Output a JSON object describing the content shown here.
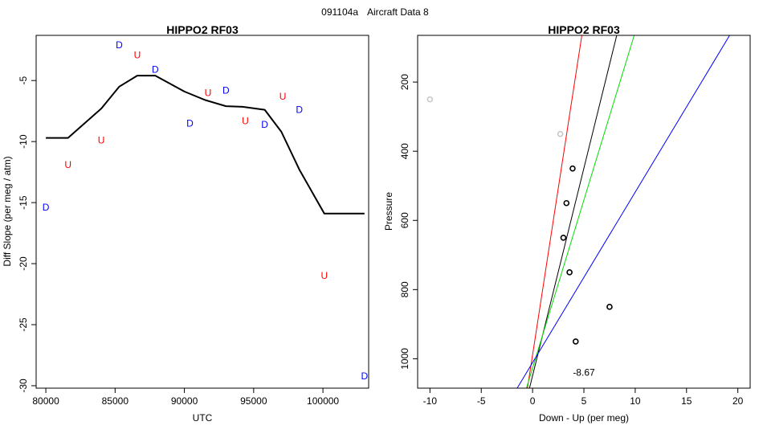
{
  "figure": {
    "supertitle_left": "091104a",
    "supertitle_right": "Aircraft Data 8"
  },
  "chart_data": [
    {
      "type": "line",
      "title": "HIPPO2 RF03",
      "xlabel": "UTC",
      "ylabel": "Diff Slope (per meg / atm)",
      "xlim": [
        79300,
        103300
      ],
      "ylim": [
        -30.2,
        -1.3
      ],
      "xticks": [
        80000,
        85000,
        90000,
        95000,
        100000
      ],
      "yticks": [
        -30,
        -25,
        -20,
        -15,
        -10,
        -5
      ],
      "series": [
        {
          "name": "smoothed",
          "color": "#000000",
          "x": [
            80000,
            81600,
            84000,
            85300,
            86600,
            87900,
            90000,
            91500,
            93000,
            94200,
            95800,
            97000,
            98300,
            100100,
            102000,
            103000
          ],
          "y": [
            -9.7,
            -9.7,
            -7.3,
            -5.5,
            -4.6,
            -4.6,
            -5.9,
            -6.6,
            -7.1,
            -7.15,
            -7.4,
            -9.2,
            -12.3,
            -15.9,
            -15.9,
            -15.9
          ]
        }
      ],
      "markers": [
        {
          "label": "D",
          "x": 80000,
          "y": -15.4,
          "color": "#0000ff"
        },
        {
          "label": "U",
          "x": 81600,
          "y": -11.9,
          "color": "#ff0000"
        },
        {
          "label": "U",
          "x": 84000,
          "y": -9.9,
          "color": "#ff0000"
        },
        {
          "label": "D",
          "x": 85300,
          "y": -2.1,
          "color": "#0000ff"
        },
        {
          "label": "U",
          "x": 86600,
          "y": -2.9,
          "color": "#ff0000"
        },
        {
          "label": "D",
          "x": 87900,
          "y": -4.1,
          "color": "#0000ff"
        },
        {
          "label": "D",
          "x": 90400,
          "y": -8.5,
          "color": "#0000ff"
        },
        {
          "label": "U",
          "x": 91700,
          "y": -6.0,
          "color": "#ff0000"
        },
        {
          "label": "D",
          "x": 93000,
          "y": -5.8,
          "color": "#0000ff"
        },
        {
          "label": "U",
          "x": 94400,
          "y": -8.3,
          "color": "#ff0000"
        },
        {
          "label": "D",
          "x": 95800,
          "y": -8.6,
          "color": "#0000ff"
        },
        {
          "label": "U",
          "x": 97100,
          "y": -6.3,
          "color": "#ff0000"
        },
        {
          "label": "D",
          "x": 98300,
          "y": -7.4,
          "color": "#0000ff"
        },
        {
          "label": "U",
          "x": 100100,
          "y": -21.0,
          "color": "#ff0000"
        },
        {
          "label": "D",
          "x": 103000,
          "y": -29.2,
          "color": "#0000ff"
        }
      ]
    },
    {
      "type": "scatter",
      "title": "HIPPO2 RF03",
      "xlabel": "Down - Up (per meg)",
      "ylabel": "Pressure",
      "xlim": [
        -11.2,
        21.2
      ],
      "ylim": [
        1085,
        65
      ],
      "y_reversed": true,
      "xticks": [
        -10,
        -5,
        0,
        5,
        10,
        15,
        20
      ],
      "yticks": [
        200,
        400,
        600,
        800,
        1000
      ],
      "points": [
        {
          "x": -10.0,
          "y": 250,
          "color": "#c8c8c8"
        },
        {
          "x": 2.7,
          "y": 350,
          "color": "#c8c8c8"
        },
        {
          "x": 3.9,
          "y": 450,
          "color": "#000000"
        },
        {
          "x": 3.3,
          "y": 550,
          "color": "#000000"
        },
        {
          "x": 3.0,
          "y": 650,
          "color": "#000000"
        },
        {
          "x": 3.6,
          "y": 750,
          "color": "#000000"
        },
        {
          "x": 7.5,
          "y": 850,
          "color": "#000000"
        },
        {
          "x": 4.2,
          "y": 950,
          "color": "#000000"
        }
      ],
      "fit_lines": [
        {
          "color": "#ff0000",
          "x_at_bottom": -0.5,
          "x_at_top": 4.8
        },
        {
          "color": "#000000",
          "x_at_bottom": -0.3,
          "x_at_top": 8.2
        },
        {
          "color": "#00dd00",
          "x_at_bottom": -0.6,
          "x_at_top": 9.9
        },
        {
          "color": "#0000ff",
          "x_at_bottom": -1.5,
          "x_at_top": 19.2
        }
      ],
      "annotation": {
        "text": "-8.67",
        "x": 5.0,
        "y": 1040
      }
    }
  ]
}
